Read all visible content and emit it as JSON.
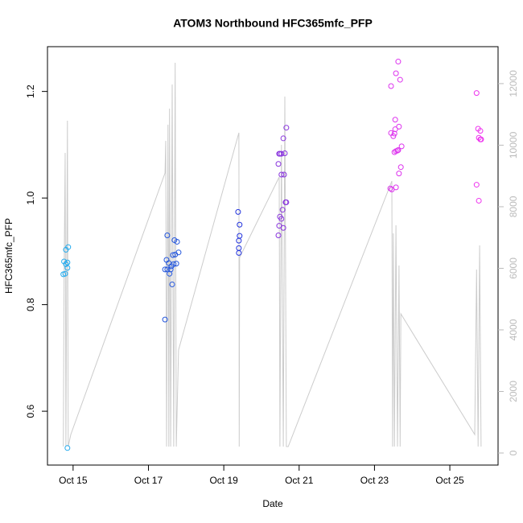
{
  "chart_data": {
    "type": "scatter",
    "title": "ATOM3 Northbound HFC365mfc_PFP",
    "x_label": "Date",
    "y_label": "HFC365mfc_PFP",
    "xlim": [
      14.32,
      26.28
    ],
    "xticks": [
      {
        "value": 15,
        "label": "Oct 15"
      },
      {
        "value": 17,
        "label": "Oct 17"
      },
      {
        "value": 19,
        "label": "Oct 19"
      },
      {
        "value": 21,
        "label": "Oct 21"
      },
      {
        "value": 23,
        "label": "Oct 23"
      },
      {
        "value": 25,
        "label": "Oct 25"
      }
    ],
    "ylim": [
      0.499,
      1.284
    ],
    "yticks": [
      0.6,
      0.8,
      {
        "value": 1,
        "label": "1.0"
      },
      1.2
    ],
    "y2lim": [
      -392,
      13200
    ],
    "y2ticks": [
      0,
      2000,
      4000,
      6000,
      8000,
      10000,
      12000
    ],
    "y2_color": "#bbbbbb",
    "series": [
      {
        "color": "#22aaee",
        "x": [
          14.76,
          14.79,
          14.74,
          14.81,
          14.85,
          14.87,
          14.81,
          14.85,
          14.85
        ],
        "values": [
          0.881,
          0.858,
          0.857,
          0.876,
          0.869,
          0.908,
          0.903,
          0.879,
          0.531
        ]
      },
      {
        "color": "#2255dd",
        "x": [
          17.44,
          17.5,
          17.48,
          17.5,
          17.54,
          17.59,
          17.56,
          17.63,
          17.65,
          17.67,
          17.69,
          17.76,
          17.8,
          17.74,
          17.71,
          17.44,
          17.61
        ],
        "values": [
          0.772,
          0.93,
          0.884,
          0.866,
          0.878,
          0.866,
          0.858,
          0.838,
          0.893,
          0.876,
          0.921,
          0.918,
          0.898,
          0.877,
          0.894,
          0.866,
          0.872
        ]
      },
      {
        "color": "#2233dd",
        "x": [
          19.38,
          19.42,
          19.4,
          19.4,
          19.42,
          19.4
        ],
        "values": [
          0.974,
          0.95,
          0.92,
          0.906,
          0.929,
          0.897
        ]
      },
      {
        "color": "#8833dd",
        "x": [
          20.47,
          20.53,
          20.45,
          20.53,
          20.6,
          20.58,
          20.62,
          20.66,
          20.64,
          20.66,
          20.56,
          20.49,
          20.53,
          20.47,
          20.58,
          20.45,
          20.49
        ],
        "values": [
          1.083,
          1.083,
          1.064,
          1.044,
          1.044,
          1.112,
          1.084,
          1.132,
          0.992,
          0.992,
          0.978,
          0.965,
          0.961,
          0.948,
          0.944,
          0.93,
          1.083
        ]
      },
      {
        "color": "#dd33ee",
        "x": [
          23.44,
          23.63,
          23.57,
          23.68,
          23.44,
          23.5,
          23.55,
          23.55,
          23.53,
          23.57,
          23.63,
          23.61,
          23.72,
          23.65,
          23.7,
          23.65,
          23.42,
          23.46,
          23.57,
          23.53
        ],
        "values": [
          1.21,
          1.256,
          1.234,
          1.222,
          1.122,
          1.116,
          1.129,
          1.147,
          1.086,
          1.088,
          1.09,
          1.089,
          1.097,
          1.134,
          1.058,
          1.046,
          1.018,
          1.016,
          1.02,
          1.121
        ]
      },
      {
        "color": "#ee33ee",
        "x": [
          25.71,
          25.75,
          25.81,
          25.77,
          25.83,
          25.81,
          25.77,
          25.71
        ],
        "values": [
          1.197,
          1.13,
          1.126,
          1.113,
          1.11,
          1.11,
          0.995,
          1.025
        ]
      }
    ],
    "line": {
      "color": "#cccccc",
      "axis": "y2",
      "x": [
        14.74,
        14.76,
        14.79,
        14.81,
        14.85,
        14.87,
        14.94,
        17.44,
        17.46,
        17.48,
        17.52,
        17.54,
        17.56,
        17.59,
        17.63,
        17.67,
        17.71,
        17.74,
        17.8,
        19.4,
        19.41,
        19.42,
        20.47,
        20.49,
        20.53,
        20.58,
        20.62,
        20.66,
        20.71,
        23.46,
        23.48,
        23.5,
        23.53,
        23.57,
        23.61,
        23.65,
        23.68,
        23.7,
        25.66,
        25.71,
        25.75,
        25.79,
        25.83
      ],
      "values": [
        209,
        5568,
        9750,
        209,
        10796,
        209,
        601,
        9097,
        10142,
        209,
        10665,
        209,
        11188,
        209,
        11972,
        209,
        12678,
        209,
        3346,
        10404,
        209,
        6352,
        8966,
        209,
        10012,
        209,
        11580,
        209,
        209,
        8835,
        209,
        7136,
        209,
        7398,
        209,
        6091,
        209,
        4522,
        601,
        5960,
        209,
        6744,
        209
      ]
    }
  }
}
